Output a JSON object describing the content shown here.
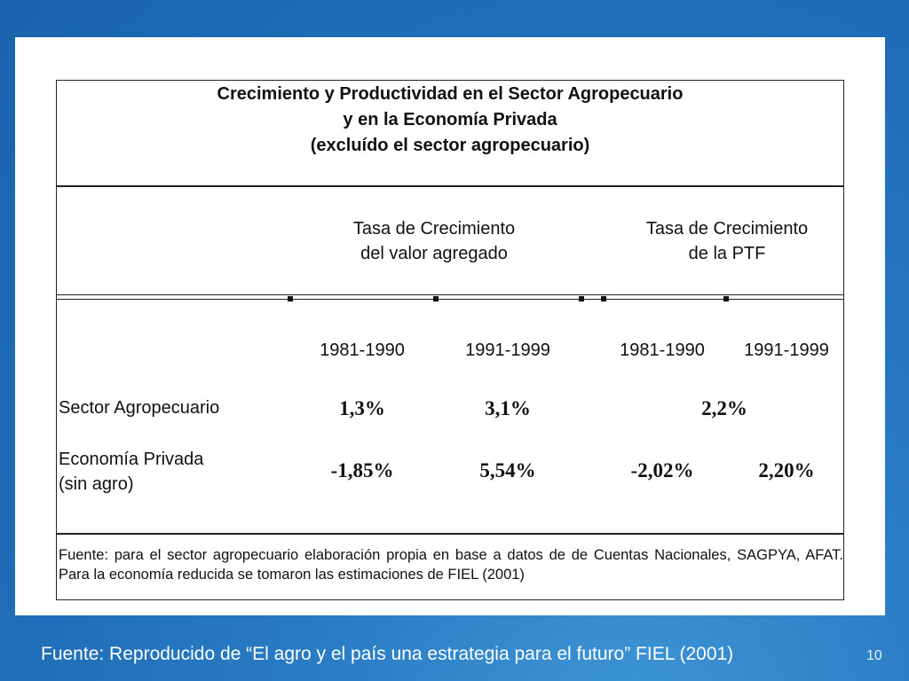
{
  "table": {
    "title_lines": [
      "Crecimiento y Productividad en el Sector Agropecuario",
      "y en la Economía Privada",
      "(excluído el sector agropecuario)"
    ],
    "groups": [
      {
        "line1": "Tasa de Crecimiento",
        "line2": "del valor agregado"
      },
      {
        "line1": "Tasa de Crecimiento",
        "line2": "de la PTF"
      }
    ],
    "years": [
      "1981-1990",
      "1991-1999",
      "1981-1990",
      "1991-1999"
    ],
    "rows": [
      {
        "label_line1": "Sector Agropecuario",
        "label_line2": "",
        "values": [
          "1,3%",
          "3,1%",
          "2,2%",
          ""
        ]
      },
      {
        "label_line1": "Economía Privada",
        "label_line2": "(sin agro)",
        "values": [
          "-1,85%",
          "5,54%",
          "-2,02%",
          "2,20%"
        ]
      }
    ],
    "source": "Fuente: para el sector agropecuario elaboración propia en base a datos de de Cuentas Nacionales, SAGPYA, AFAT. Para la economía reducida se tomaron las estimaciones de FIEL (2001)"
  },
  "footer": {
    "text": "Fuente: Reproducido de “El agro y el país una estrategia para el futuro” FIEL (2001)",
    "page_number": "10"
  },
  "colors": {
    "background": "#1f6db8",
    "panel": "#ffffff",
    "footer_text": "#ffffff"
  }
}
